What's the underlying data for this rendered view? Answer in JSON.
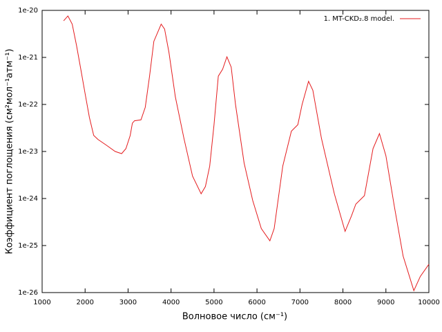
{
  "chart_data": {
    "type": "line",
    "xlabel": "Волновое число (см⁻¹)",
    "ylabel": "Коэффициент поглощения (см²мол⁻¹атм⁻¹)",
    "x": [
      1500,
      1600,
      1700,
      1800,
      1900,
      2000,
      2100,
      2200,
      2300,
      2500,
      2700,
      2850,
      2950,
      3050,
      3100,
      3150,
      3300,
      3400,
      3500,
      3600,
      3700,
      3770,
      3850,
      3950,
      4100,
      4300,
      4500,
      4700,
      4800,
      4900,
      5000,
      5100,
      5200,
      5300,
      5400,
      5500,
      5700,
      5900,
      6100,
      6300,
      6400,
      6600,
      6800,
      6950,
      7050,
      7200,
      7300,
      7500,
      7800,
      8050,
      8200,
      8300,
      8500,
      8700,
      8850,
      9000,
      9200,
      9400,
      9650,
      9800,
      10000
    ],
    "series": [
      {
        "name": "1. MT-CKD₂.8 model.",
        "color": "#e41a1c",
        "values": [
          6e-21,
          7.6e-21,
          5.1e-21,
          1.8e-21,
          5.6e-22,
          1.7e-22,
          5.3e-23,
          2.2e-23,
          1.8e-23,
          1.35e-23,
          1e-23,
          9e-24,
          1.15e-23,
          2.2e-23,
          4e-23,
          4.5e-23,
          4.7e-23,
          8.7e-23,
          4e-22,
          2.2e-21,
          3.6e-21,
          5.1e-21,
          4e-21,
          1.3e-21,
          1.45e-22,
          1.9e-23,
          3e-24,
          1.26e-24,
          1.8e-24,
          4.9e-24,
          3.7e-23,
          4e-22,
          5.6e-22,
          1.03e-21,
          6.2e-22,
          1e-22,
          5.7e-24,
          9.1e-25,
          2.3e-25,
          1.26e-25,
          2.3e-25,
          4.9e-24,
          2.7e-23,
          3.7e-23,
          1e-22,
          3.1e-22,
          2e-22,
          1.9e-23,
          1.26e-24,
          2e-25,
          4.3e-25,
          7.6e-25,
          1.15e-24,
          1.15e-23,
          2.4e-23,
          8.1e-24,
          6.5e-25,
          6e-26,
          1.1e-26,
          2.2e-26,
          4e-26
        ]
      }
    ],
    "xlim": [
      1000,
      10000
    ],
    "xticks": [
      1000,
      2000,
      3000,
      4000,
      5000,
      6000,
      7000,
      8000,
      9000,
      10000
    ],
    "ylim": [
      1e-26,
      1e-20
    ],
    "yticks": [
      {
        "value": 1e-26,
        "label": "1e-26"
      },
      {
        "value": 1e-25,
        "label": "1e-25"
      },
      {
        "value": 1e-24,
        "label": "1e-24"
      },
      {
        "value": 1e-23,
        "label": "1e-23"
      },
      {
        "value": 1e-22,
        "label": "1e-22"
      },
      {
        "value": 1e-21,
        "label": "1e-21"
      },
      {
        "value": 1e-20,
        "label": "1e-20"
      }
    ],
    "log_y": true,
    "legend": "top-right"
  }
}
